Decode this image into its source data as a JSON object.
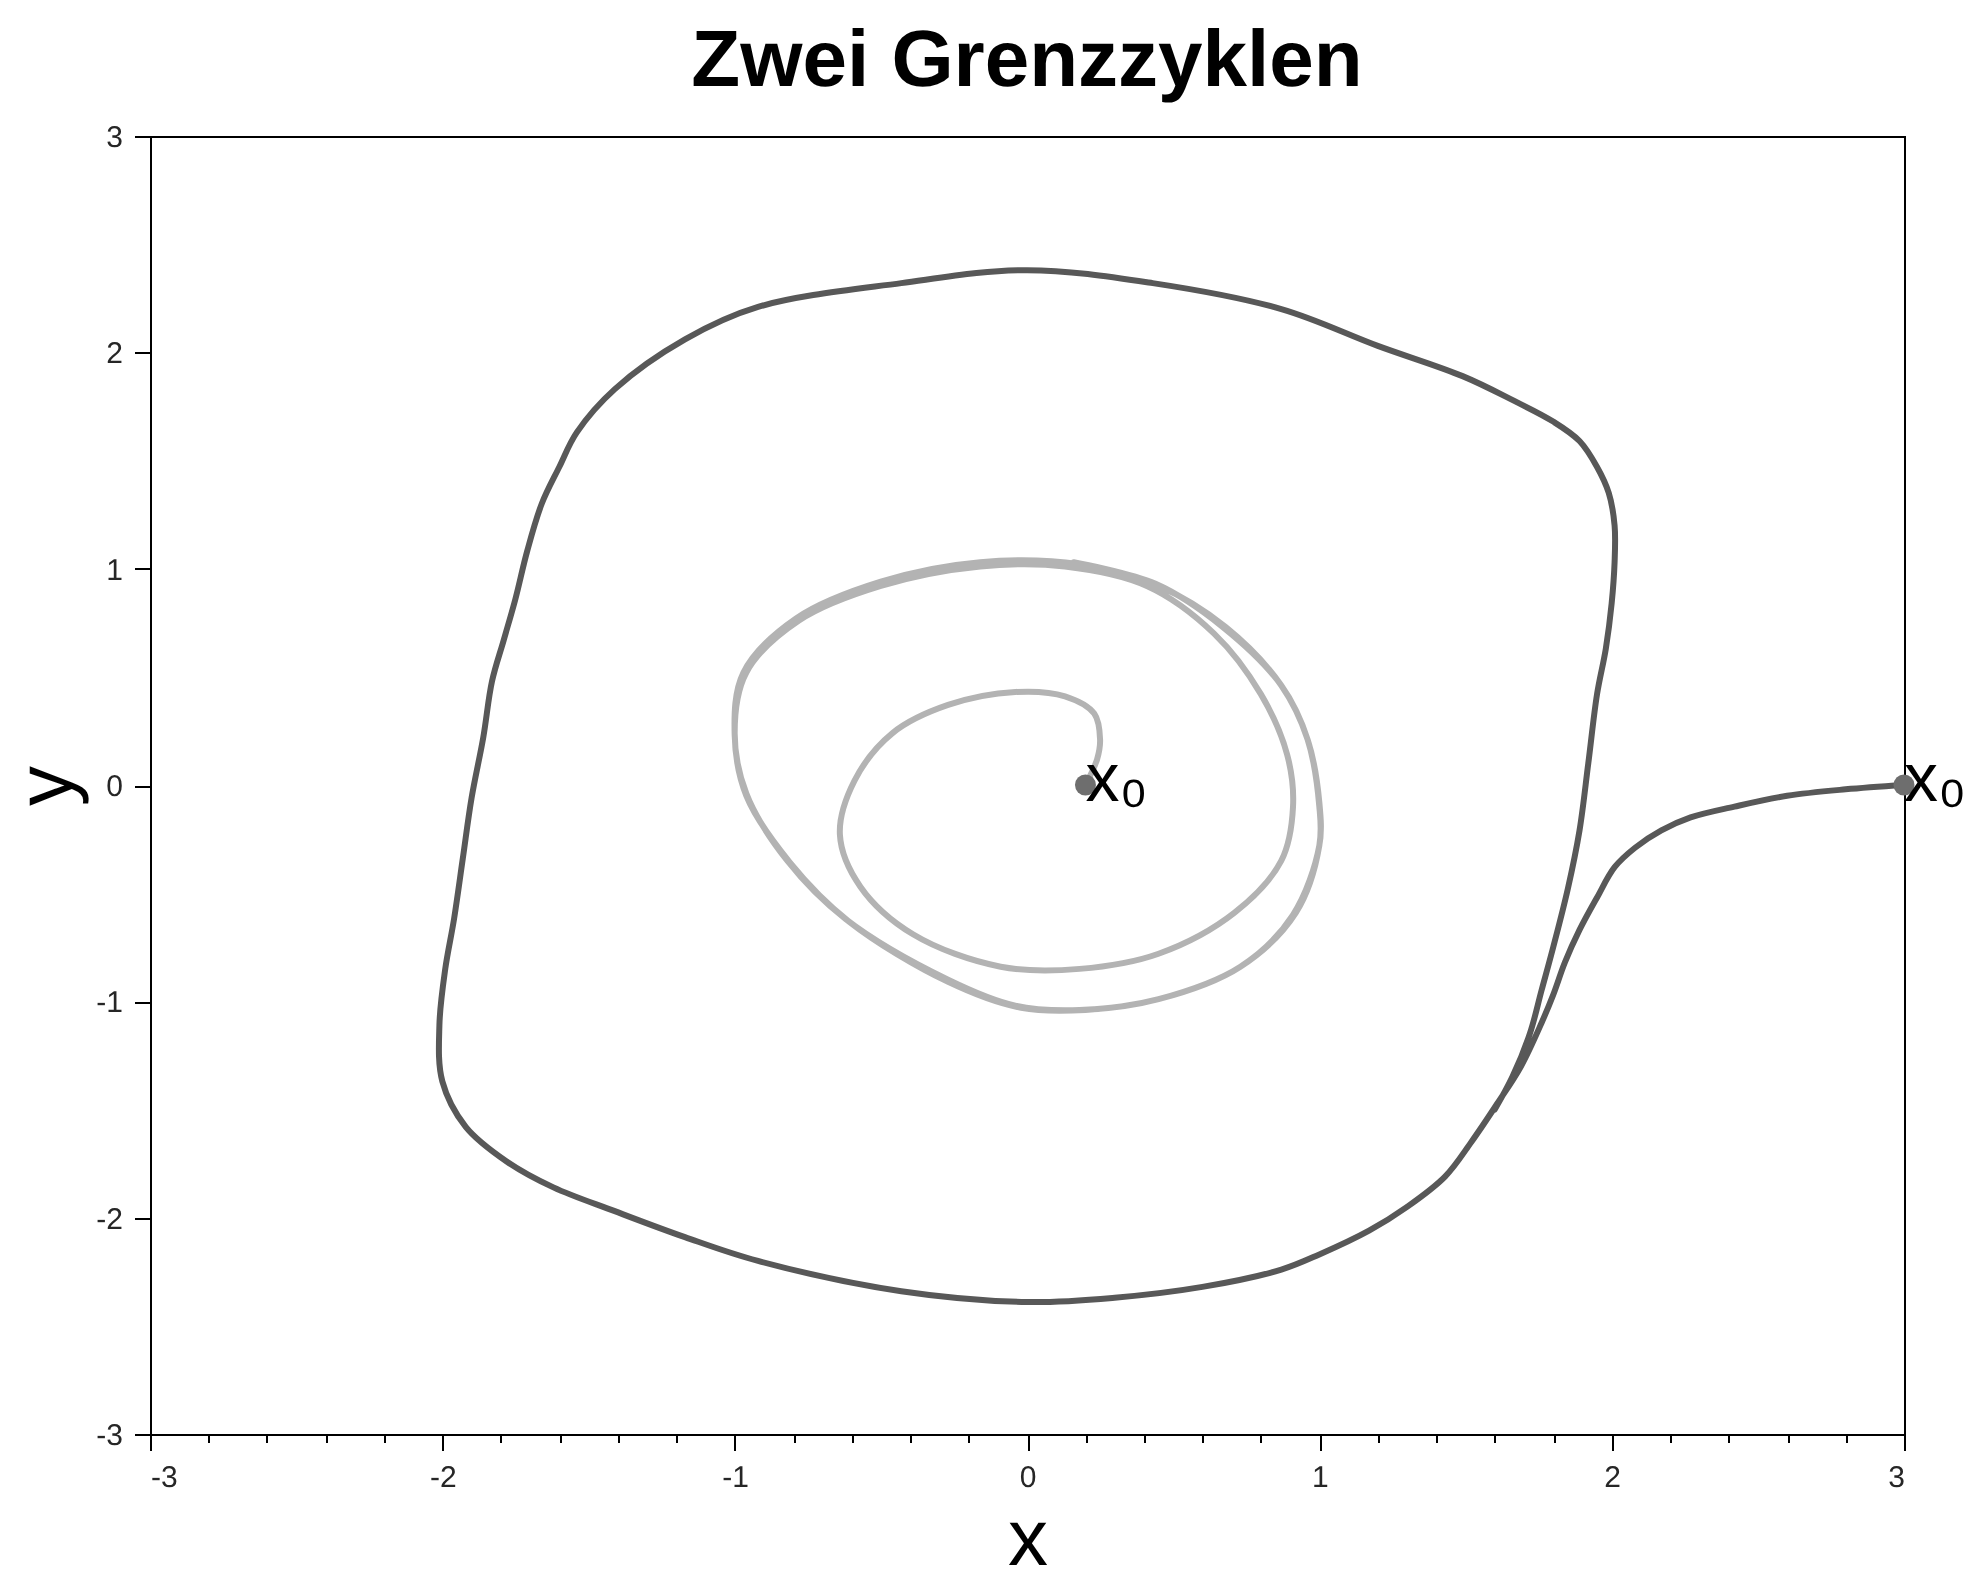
{
  "chart_data": {
    "type": "line",
    "title": "Zwei Grenzzyklen",
    "xlabel": "x",
    "ylabel": "y",
    "xlim": [
      -3,
      3
    ],
    "ylim": [
      -3,
      3
    ],
    "xticks": [
      -3,
      {
        "value": -2.8,
        "label": null
      },
      {
        "value": -2.6,
        "label": null
      },
      {
        "value": -2.4,
        "label": null
      },
      {
        "value": -2.2,
        "label": null
      },
      -2,
      {
        "value": -1.8,
        "label": null
      },
      {
        "value": -1.6,
        "label": null
      },
      {
        "value": -1.4,
        "label": null
      },
      {
        "value": -1.2,
        "label": null
      },
      -1,
      {
        "value": -0.8,
        "label": null
      },
      {
        "value": -0.6,
        "label": null
      },
      {
        "value": -0.4,
        "label": null
      },
      {
        "value": -0.2,
        "label": null
      },
      0,
      {
        "value": 0.2,
        "label": null
      },
      {
        "value": 0.4,
        "label": null
      },
      {
        "value": 0.6,
        "label": null
      },
      {
        "value": 0.8,
        "label": null
      },
      1,
      {
        "value": 1.2,
        "label": null
      },
      {
        "value": 1.4,
        "label": null
      },
      {
        "value": 1.6,
        "label": null
      },
      {
        "value": 1.8,
        "label": null
      },
      2,
      {
        "value": 2.2,
        "label": null
      },
      {
        "value": 2.4,
        "label": null
      },
      {
        "value": 2.6,
        "label": null
      },
      {
        "value": 2.8,
        "label": null
      },
      3
    ],
    "yticks": [
      -3,
      -2,
      -1,
      0,
      1,
      2,
      3
    ],
    "series": [
      {
        "color": "#585858",
        "x": [
          3,
          2.8,
          2.6,
          2.42,
          2.27,
          2.17,
          2.08,
          2.01,
          1.95,
          1.89,
          1.84,
          1.8,
          1.76,
          1.69,
          1.61,
          1.52,
          1.43,
          1.3,
          1.17,
          1.0,
          0.87,
          0.6,
          0.3,
          0,
          -0.43,
          -0.92,
          -1.17,
          -1.41,
          -1.62,
          -1.78,
          -1.92,
          -2.0,
          -2.01,
          -1.99,
          -1.96,
          -1.93,
          -1.9,
          -1.86,
          -1.83,
          -1.79,
          -1.75,
          -1.71,
          -1.66,
          -1.6,
          -1.54,
          -1.41,
          -1.17,
          -0.92,
          -0.43,
          0,
          0.43,
          0.87,
          1.2,
          1.49,
          1.66,
          1.8,
          1.89,
          1.95,
          1.99,
          2.01,
          2.01,
          2.0,
          1.98,
          1.95,
          1.92,
          1.89,
          1.85,
          1.8,
          1.76,
          1.72,
          1.66,
          1.6
        ],
        "values": [
          0,
          -0.02,
          -0.05,
          -0.1,
          -0.15,
          -0.21,
          -0.29,
          -0.38,
          -0.52,
          -0.67,
          -0.82,
          -0.97,
          -1.1,
          -1.3,
          -1.47,
          -1.65,
          -1.81,
          -1.95,
          -2.06,
          -2.17,
          -2.24,
          -2.32,
          -2.37,
          -2.39,
          -2.34,
          -2.2,
          -2.09,
          -1.97,
          -1.86,
          -1.74,
          -1.58,
          -1.37,
          -1.11,
          -0.85,
          -0.62,
          -0.34,
          -0.06,
          0.22,
          0.48,
          0.67,
          0.86,
          1.08,
          1.3,
          1.47,
          1.63,
          1.83,
          2.06,
          2.21,
          2.32,
          2.38,
          2.32,
          2.2,
          2.03,
          1.89,
          1.78,
          1.68,
          1.59,
          1.47,
          1.35,
          1.2,
          1.03,
          0.84,
          0.63,
          0.42,
          0.1,
          -0.21,
          -0.48,
          -0.75,
          -0.95,
          -1.15,
          -1.35,
          -1.5
        ]
      },
      {
        "color": "#b3b3b3",
        "x": [
          0.2,
          0.24,
          0.25,
          0.23,
          0.13,
          -0.04,
          -0.27,
          -0.46,
          -0.59,
          -0.64,
          -0.57,
          -0.39,
          -0.09,
          0.18,
          0.45,
          0.71,
          0.87,
          0.91,
          0.89,
          0.8,
          0.64,
          0.41,
          0.13,
          -0.16,
          -0.5,
          -0.78,
          -0.96,
          -1.0,
          -0.96,
          -0.82,
          -0.62,
          -0.27,
          -0.04,
          0.18,
          0.45,
          0.73,
          0.91,
          1.0,
          1.0,
          0.96,
          0.87,
          0.68,
          0.45,
          0.18,
          -0.16,
          -0.5,
          -0.79,
          -0.97,
          -1.0,
          -0.96,
          -0.81,
          -0.61,
          -0.27,
          -0.02,
          0.2,
          0.45,
          0.73,
          0.92,
          1.0,
          1.0,
          0.96,
          0.87,
          0.67,
          0.44,
          0.16
        ],
        "values": [
          0,
          0.12,
          0.21,
          0.33,
          0.41,
          0.43,
          0.37,
          0.24,
          0.02,
          -0.23,
          -0.47,
          -0.69,
          -0.84,
          -0.85,
          -0.78,
          -0.59,
          -0.35,
          -0.1,
          0.14,
          0.42,
          0.7,
          0.92,
          1.01,
          1.01,
          0.92,
          0.76,
          0.52,
          0.24,
          -0.04,
          -0.35,
          -0.62,
          -0.9,
          -1.02,
          -1.04,
          -0.99,
          -0.84,
          -0.6,
          -0.28,
          -0.1,
          0.21,
          0.46,
          0.73,
          0.92,
          1.02,
          1.03,
          0.94,
          0.77,
          0.52,
          0.23,
          -0.05,
          -0.36,
          -0.63,
          -0.91,
          -1.03,
          -1.04,
          -0.99,
          -0.84,
          -0.59,
          -0.28,
          -0.08,
          0.21,
          0.46,
          0.73,
          0.93,
          1.03
        ]
      },
      {
        "type": "scatter",
        "marker": "circle",
        "color": "#6e6e6e",
        "x": [
          0.2,
          3
        ],
        "values": [
          0,
          0
        ]
      }
    ],
    "annotations": [
      {
        "text": "x₀",
        "x": 0.2,
        "y": 0
      },
      {
        "text": "x₀",
        "x": 3,
        "y": 0
      }
    ]
  }
}
